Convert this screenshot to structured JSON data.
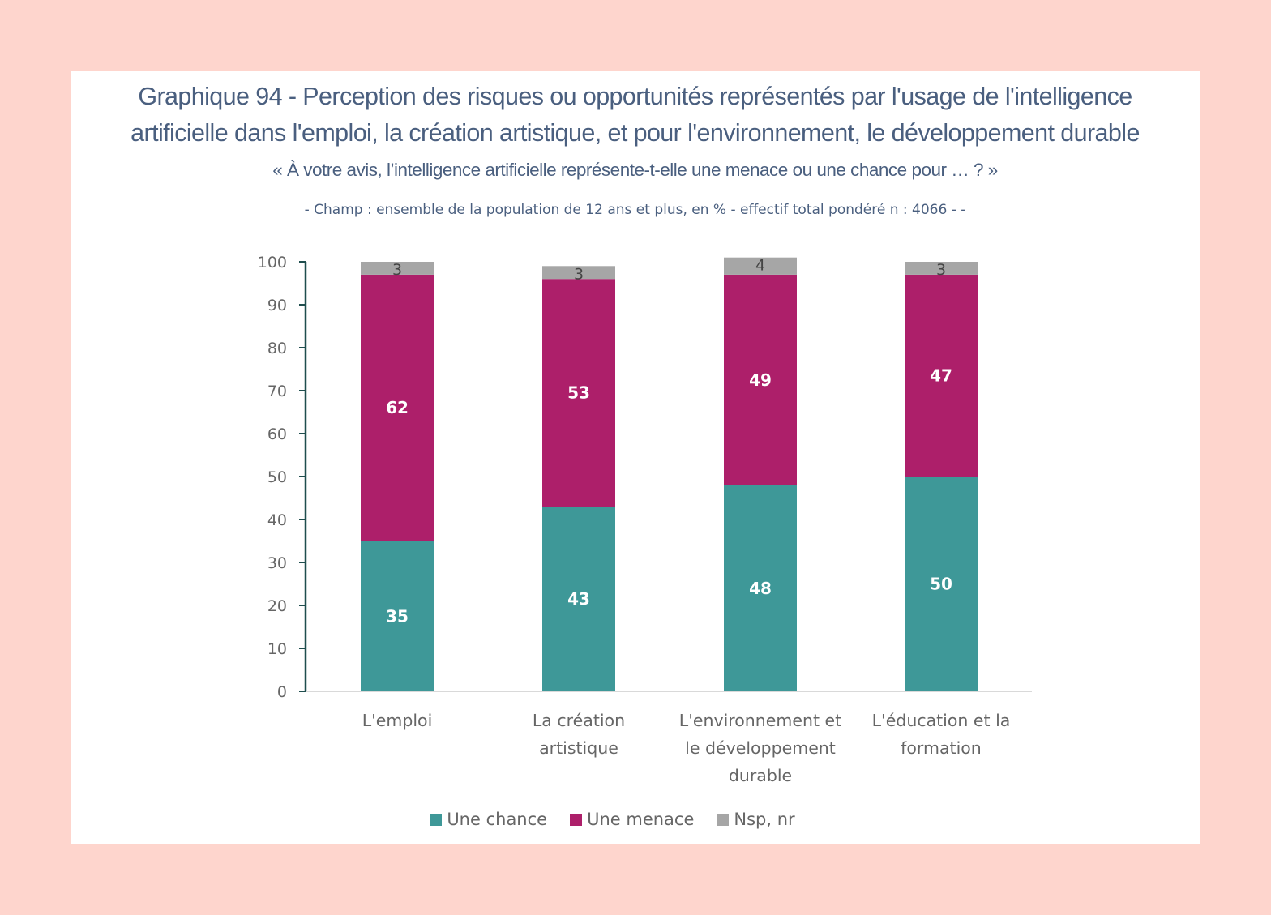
{
  "header": {
    "title_line1": "Graphique 94 - Perception des risques ou opportunités représentés par l'usage de l'intelligence",
    "title_line2": "artificielle dans l'emploi, la création artistique, et pour l'environnement, le développement durable",
    "question": "« À votre avis, l’intelligence artificielle représente-t-elle une menace ou une chance pour … ? »",
    "scope": "- Champ : ensemble de la population de 12 ans et plus, en % - effectif total pondéré n : 4066 - -"
  },
  "colors": {
    "chance": "#3e9898",
    "menace": "#ad1f6a",
    "nsp": "#a6a6a6",
    "axis": "#1f4e4e",
    "page_background": "#fed5cd"
  },
  "chart_data": {
    "type": "bar",
    "stacked": true,
    "title": "Graphique 94 - Perception des risques ou opportunités représentés par l'usage de l'intelligence artificielle dans l'emploi, la création artistique, et pour l'environnement, le développement durable",
    "subtitle": "« À votre avis, l’intelligence artificielle représente-t-elle une menace ou une chance pour … ? »",
    "xlabel": "",
    "ylabel": "",
    "ylim": [
      0,
      100
    ],
    "yticks": [
      0,
      10,
      20,
      30,
      40,
      50,
      60,
      70,
      80,
      90,
      100
    ],
    "grid": false,
    "legend_position": "bottom",
    "categories": [
      [
        "L'emploi"
      ],
      [
        "La création",
        "artistique"
      ],
      [
        "L'environnement et",
        "le développement",
        "durable"
      ],
      [
        "L'éducation et la",
        "formation"
      ]
    ],
    "series": [
      {
        "name": "Une chance",
        "color": "#3e9898",
        "values": [
          35,
          43,
          48,
          50
        ]
      },
      {
        "name": "Une menace",
        "color": "#ad1f6a",
        "values": [
          62,
          53,
          49,
          47
        ]
      },
      {
        "name": "Nsp, nr",
        "color": "#a6a6a6",
        "values": [
          3,
          3,
          4,
          3
        ]
      }
    ]
  }
}
